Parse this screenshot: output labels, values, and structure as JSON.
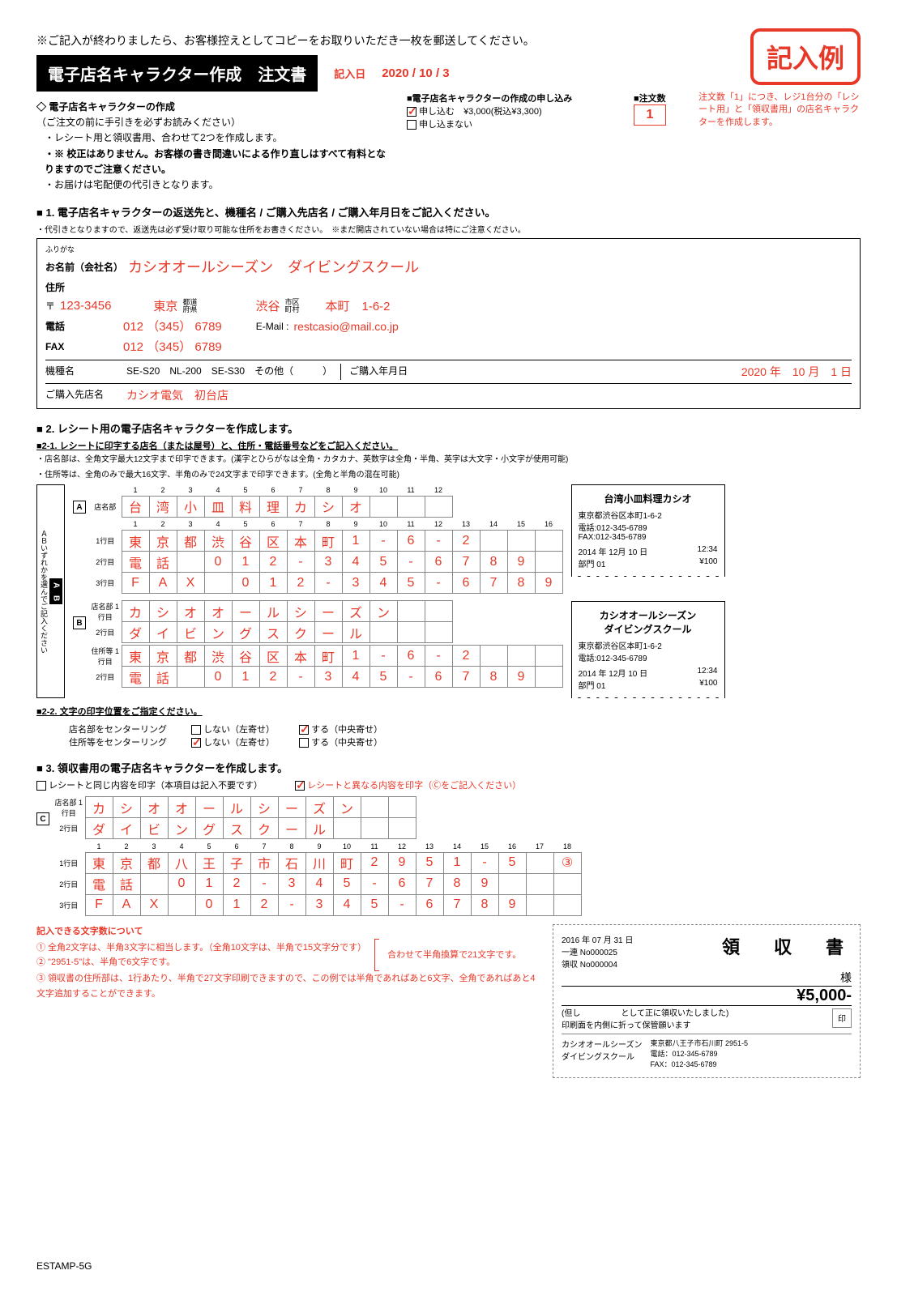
{
  "top_note": "※ご記入が終わりましたら、お客様控えとしてコピーをお取りいただき一枚を郵送してください。",
  "stamp": "記入例",
  "date_label": "記入日",
  "date_value": "2020 / 10 / 3",
  "title": "電子店名キャラクター作成　注文書",
  "intro_head": "◇ 電子店名キャラクターの作成",
  "intro_sub": "（ご注文の前に手引きを必ずお読みください）",
  "intro_items": [
    "レシート用と領収書用、合わせて2つを作成します。",
    "※ 校正はありません。お客様の書き間違いによる作り直しはすべて有料となりますのでご注意ください。",
    "お届けは宅配便の代引きとなります。"
  ],
  "app_head": "■電子店名キャラクターの作成の申し込み",
  "app_opt1": "申し込む",
  "app_price": "¥3,000(税込¥3,300)",
  "app_opt2": "申し込まない",
  "qty_head": "■注文数",
  "qty": "1",
  "qty_note": "注文数「1」につき、レジ1台分の「レシート用」と「領収書用」の店名キャラクターを作成します。",
  "sec1_title": "■ 1. 電子店名キャラクターの返送先と、機種名 / ご購入先店名 / ご購入年月日をご記入ください。",
  "sec1_sub": "・代引きとなりますので、返送先は必ず受け取り可能な住所をお書きください。　※まだ開店されていない場合は特にご注意ください。",
  "furigana": "ふりがな",
  "name_lbl": "お名前（会社名）",
  "name_val": "カシオオールシーズン　ダイビングスクール",
  "addr_lbl": "住所",
  "zip_lbl": "〒",
  "zip_val": "123-3456",
  "pref_val": "東京",
  "pref_lbl": "都道\n府県",
  "city_val": "渋谷",
  "ward_lbl": "市区\n町村",
  "rest_val": "本町　1-6-2",
  "tel_lbl": "電話",
  "tel_val": "012 （345） 6789",
  "email_lbl": "E-Mail :",
  "email_val": "restcasio@mail.co.jp",
  "fax_lbl": "FAX",
  "fax_val": "012 （345） 6789",
  "model_lbl": "機種名",
  "models": "SE-S20　NL-200　SE-S30　その他（　　　）",
  "pdate_lbl": "ご購入年月日",
  "pdate_val": "2020 年　10 月　1 日",
  "pstore_lbl": "ご購入先店名",
  "pstore_val": "カシオ電気　初台店",
  "sec2_title": "■ 2. レシート用の電子店名キャラクターを作成します。",
  "sec21_title": "■2-1. レシートに印字する店名（または屋号）と、住所・電話番号などをご記入ください。",
  "sec21_note1": "・店名部は、全角文字最大12文字まで印字できます。(漢字とひらがなは全角・カタカナ、英数字は全角・半角、英字は大文字・小文字が使用可能)",
  "sec21_note2": "・住所等は、全角のみで最大16文字、半角のみで24文字まで印字できます。(全角と半角の混在可能)",
  "side_label": "ＡＢいずれかを選んでご記入ください",
  "gridA": {
    "shop": [
      "台",
      "湾",
      "小",
      "皿",
      "料",
      "理",
      "カ",
      "シ",
      "オ",
      "",
      "",
      ""
    ],
    "r1": [
      "東",
      "京",
      "都",
      "渋",
      "谷",
      "区",
      "本",
      "町",
      "1",
      "-",
      "6",
      "-",
      "2",
      "",
      "",
      ""
    ],
    "r2": [
      "電",
      "話",
      "",
      "0",
      "1",
      "2",
      "-",
      "3",
      "4",
      "5",
      "-",
      "6",
      "7",
      "8",
      "9",
      ""
    ],
    "r3": [
      "F",
      "A",
      "X",
      "",
      "0",
      "1",
      "2",
      "-",
      "3",
      "4",
      "5",
      "-",
      "6",
      "7",
      "8",
      "9"
    ]
  },
  "gridB": {
    "shop1": [
      "カ",
      "シ",
      "オ",
      "オ",
      "ー",
      "ル",
      "シ",
      "ー",
      "ズ",
      "ン",
      "",
      ""
    ],
    "shop2": [
      "ダ",
      "イ",
      "ビ",
      "ン",
      "グ",
      "ス",
      "ク",
      "ー",
      "ル",
      "",
      "",
      ""
    ],
    "r1": [
      "東",
      "京",
      "都",
      "渋",
      "谷",
      "区",
      "本",
      "町",
      "1",
      "-",
      "6",
      "-",
      "2",
      "",
      "",
      ""
    ],
    "r2": [
      "電",
      "話",
      "",
      "0",
      "1",
      "2",
      "-",
      "3",
      "4",
      "5",
      "-",
      "6",
      "7",
      "8",
      "9",
      ""
    ]
  },
  "receiptA": {
    "title": "台湾小皿料理カシオ",
    "addr": "東京都渋谷区本町1-6-2",
    "tel": "電話:012-345-6789",
    "fax": "FAX:012-345-6789",
    "date": "2014 年 12月 10 日",
    "time": "12:34",
    "dept": "部門 01",
    "amt": "¥100"
  },
  "receiptB": {
    "title": "カシオオールシーズン\nダイビングスクール",
    "addr": "東京都渋谷区本町1-6-2",
    "tel": "電話:012-345-6789",
    "date": "2014 年 12月 10 日",
    "time": "12:34",
    "dept": "部門 01",
    "amt": "¥100"
  },
  "sec22_title": "■2-2. 文字の印字位置をご指定ください。",
  "ctr1_lbl": "店名部をセンターリング",
  "ctr2_lbl": "住所等をセンターリング",
  "ctr_no": "しない（左寄せ）",
  "ctr_yes": "する（中央寄せ）",
  "sec3_title": "■ 3. 領収書用の電子店名キャラクターを作成します。",
  "sec3_opt1": "レシートと同じ内容を印字（本項目は記入不要です）",
  "sec3_opt2": "レシートと異なる内容を印字（Ⓒをご記入ください）",
  "gridC": {
    "shop1": [
      "カ",
      "シ",
      "オ",
      "オ",
      "ー",
      "ル",
      "シ",
      "ー",
      "ズ",
      "ン",
      "",
      ""
    ],
    "shop2": [
      "ダ",
      "イ",
      "ビ",
      "ン",
      "グ",
      "ス",
      "ク",
      "ー",
      "ル",
      "",
      "",
      ""
    ],
    "r1": [
      "東",
      "京",
      "都",
      "八",
      "王",
      "子",
      "市",
      "石",
      "川",
      "町",
      "2",
      "9",
      "5",
      "1",
      "-",
      "5",
      "",
      "③"
    ],
    "r2": [
      "電",
      "話",
      "",
      "0",
      "1",
      "2",
      "-",
      "3",
      "4",
      "5",
      "-",
      "6",
      "7",
      "8",
      "9",
      "",
      "",
      "",
      ""
    ],
    "r3": [
      "F",
      "A",
      "X",
      "",
      "0",
      "1",
      "2",
      "-",
      "3",
      "4",
      "5",
      "-",
      "6",
      "7",
      "8",
      "9",
      "",
      ""
    ]
  },
  "foot_head": "記入できる文字数について",
  "foot_1": "① 全角2文字は、半角3文字に相当します。（全角10文字は、半角で15文字分です）",
  "foot_mid": "合わせて半角換算で21文字です。",
  "foot_2": "② \"2951-5\"は、半角で6文字です。",
  "foot_3": "③ 領収書の住所部は、1行あたり、半角で27文字印刷できますので、この例では半角であればあと6文字、全角であればあと4文字追加することができます。",
  "ryoshu": {
    "date": "2016 年 07 月 31 日",
    "no1": "一連 No000025",
    "no2": "領収 No000004",
    "title": "領　収　書",
    "sama": "様",
    "amt": "¥5,000-",
    "note1": "(但し　　　　　として正に領収いたしました)",
    "note2": "印刷面を内側に折って保管願います",
    "co": "カシオオールシーズン\nダイビングスクール",
    "addr": "東京都八王子市石川町 2951-5\n電話：012-345-6789\nFAX：012-345-6789",
    "seal": "印"
  },
  "docid": "ESTAMP-5G",
  "lbl_shop": "店名部",
  "lbl_addr": "住所等",
  "lbl_row": "行目"
}
